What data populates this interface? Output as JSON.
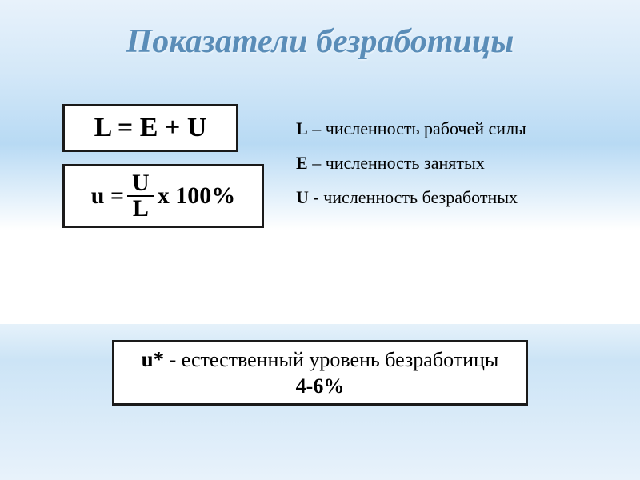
{
  "title": "Показатели безработицы",
  "formula1": "L = E + U",
  "formula2": {
    "prefix": "u = ",
    "numerator": "U",
    "denominator": "L",
    "suffix": " x 100%"
  },
  "legend": {
    "l_sym": "L",
    "l_text": " – численность рабочей силы",
    "e_sym": "E",
    "e_text": " – численность занятых",
    "u_sym": "U",
    "u_text": " - численность безработных"
  },
  "natural": {
    "sym": "u*",
    "text": " - естественный уровень безработицы",
    "range": "4-6%"
  },
  "colors": {
    "title_color": "#5a8db8",
    "border_color": "#1a1a1a",
    "box_bg": "#ffffff"
  }
}
